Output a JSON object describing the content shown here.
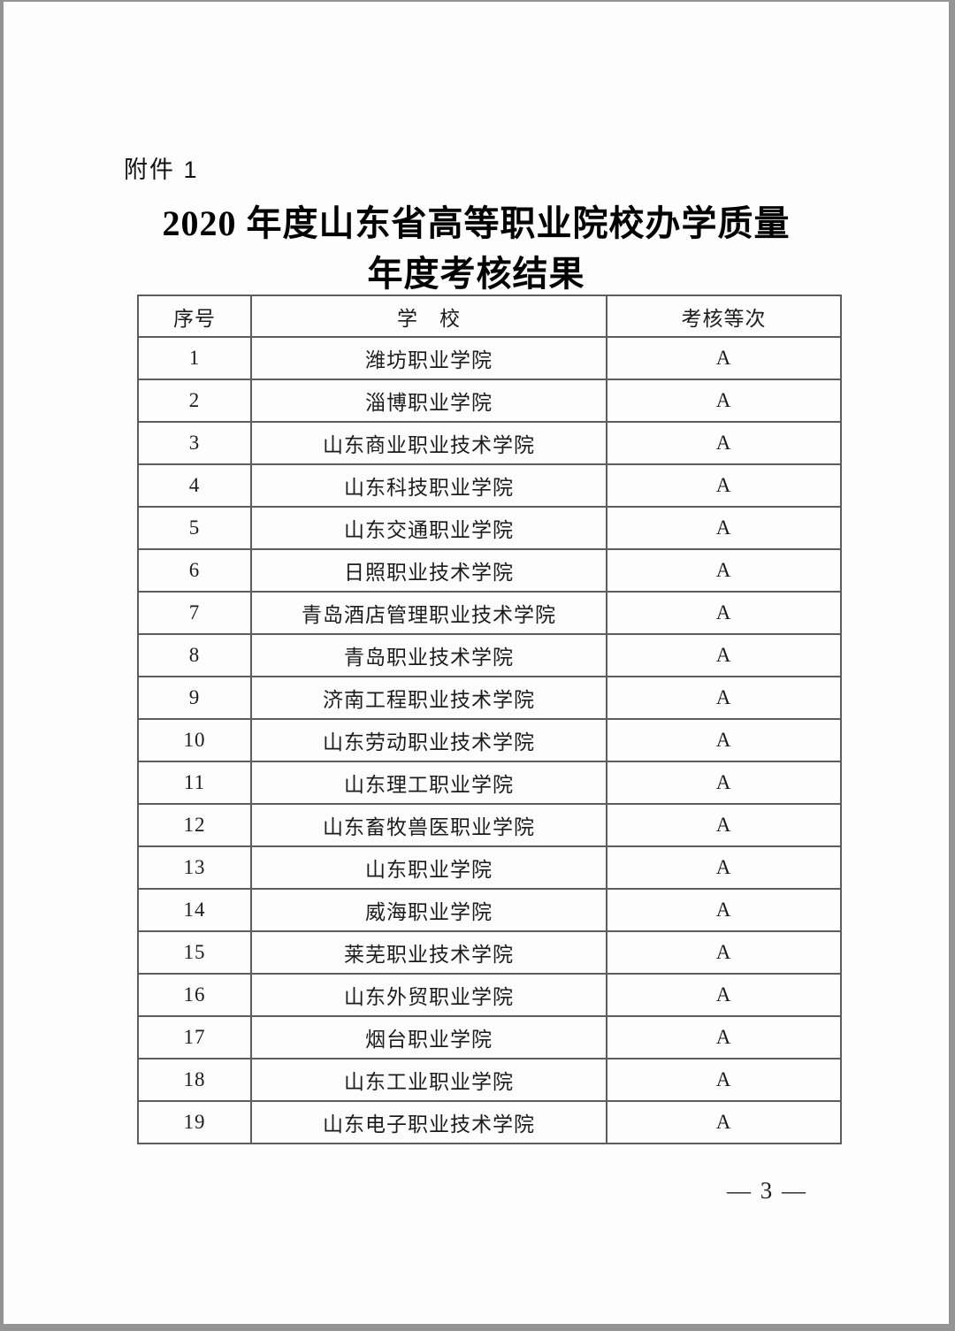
{
  "page": {
    "attachment_label": "附件 1",
    "title_line1": "2020 年度山东省高等职业院校办学质量",
    "title_line2": "年度考核结果",
    "page_number": "— 3 —"
  },
  "table": {
    "columns": [
      "序号",
      "学　校",
      "考核等次"
    ],
    "rows": [
      {
        "no": "1",
        "school": "潍坊职业学院",
        "grade": "A"
      },
      {
        "no": "2",
        "school": "淄博职业学院",
        "grade": "A"
      },
      {
        "no": "3",
        "school": "山东商业职业技术学院",
        "grade": "A"
      },
      {
        "no": "4",
        "school": "山东科技职业学院",
        "grade": "A"
      },
      {
        "no": "5",
        "school": "山东交通职业学院",
        "grade": "A"
      },
      {
        "no": "6",
        "school": "日照职业技术学院",
        "grade": "A"
      },
      {
        "no": "7",
        "school": "青岛酒店管理职业技术学院",
        "grade": "A"
      },
      {
        "no": "8",
        "school": "青岛职业技术学院",
        "grade": "A"
      },
      {
        "no": "9",
        "school": "济南工程职业技术学院",
        "grade": "A"
      },
      {
        "no": "10",
        "school": "山东劳动职业技术学院",
        "grade": "A"
      },
      {
        "no": "11",
        "school": "山东理工职业学院",
        "grade": "A"
      },
      {
        "no": "12",
        "school": "山东畜牧兽医职业学院",
        "grade": "A"
      },
      {
        "no": "13",
        "school": "山东职业学院",
        "grade": "A"
      },
      {
        "no": "14",
        "school": "威海职业学院",
        "grade": "A"
      },
      {
        "no": "15",
        "school": "莱芜职业技术学院",
        "grade": "A"
      },
      {
        "no": "16",
        "school": "山东外贸职业学院",
        "grade": "A"
      },
      {
        "no": "17",
        "school": "烟台职业学院",
        "grade": "A"
      },
      {
        "no": "18",
        "school": "山东工业职业学院",
        "grade": "A"
      },
      {
        "no": "19",
        "school": "山东电子职业技术学院",
        "grade": "A"
      }
    ]
  },
  "colors": {
    "page_background": "#fdfdfd",
    "frame_gray": "#949494",
    "table_border": "#5d5d5d",
    "text": "#1c1c1c"
  }
}
